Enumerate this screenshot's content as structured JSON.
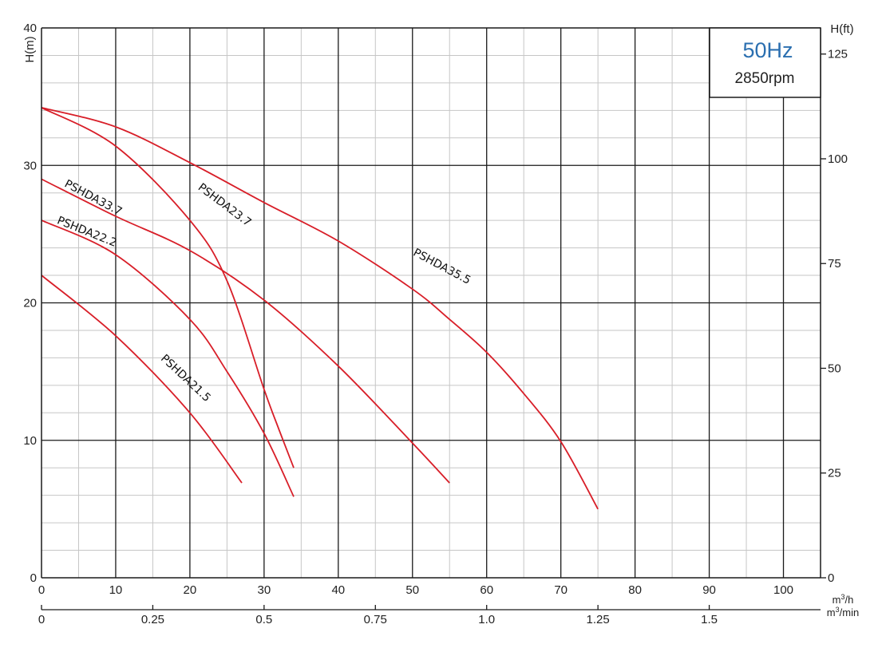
{
  "chart_data": {
    "type": "line",
    "x": {
      "min": 0,
      "max": 105,
      "ticks": [
        0,
        10,
        20,
        30,
        40,
        50,
        60,
        70,
        80,
        90,
        100
      ],
      "unit": "m³/h"
    },
    "x2": {
      "ticks": [
        0,
        0.25,
        0.5,
        0.75,
        1.0,
        1.25,
        1.5
      ],
      "tick_labels": [
        "0",
        "0.25",
        "0.5",
        "0.75",
        "1.0",
        "1.25",
        "1.5"
      ],
      "unit": "m³/min"
    },
    "y": {
      "min": 0,
      "max": 40,
      "ticks": [
        0,
        10,
        20,
        30,
        40
      ],
      "label": "H(m)"
    },
    "y2": {
      "ticks": [
        0,
        25,
        50,
        75,
        100,
        125
      ],
      "label": "H(ft)"
    },
    "grid": true,
    "info_box": {
      "title": "50Hz",
      "subtitle": "2850rpm"
    },
    "series": [
      {
        "name": "PSHDA35.5",
        "points": [
          [
            0,
            34.2
          ],
          [
            10,
            32.8
          ],
          [
            20,
            30.2
          ],
          [
            30,
            27.3
          ],
          [
            40,
            24.5
          ],
          [
            50,
            21.0
          ],
          [
            55,
            18.8
          ],
          [
            60,
            16.4
          ],
          [
            65,
            13.4
          ],
          [
            70,
            9.9
          ],
          [
            75,
            5.0
          ]
        ],
        "label_at": [
          50,
          23.5
        ],
        "label_angle": 28
      },
      {
        "name": "PSHDA23.7",
        "points": [
          [
            0,
            34.2
          ],
          [
            10,
            31.4
          ],
          [
            20,
            26.0
          ],
          [
            25,
            21.6
          ],
          [
            30,
            13.7
          ],
          [
            32,
            10.8
          ],
          [
            34,
            8.0
          ]
        ],
        "label_at": [
          21,
          28.3
        ],
        "label_angle": 37
      },
      {
        "name": "PSHDA33.7",
        "points": [
          [
            0,
            29.0
          ],
          [
            10,
            26.3
          ],
          [
            20,
            23.8
          ],
          [
            30,
            20.2
          ],
          [
            40,
            15.4
          ],
          [
            50,
            9.8
          ],
          [
            55,
            6.9
          ]
        ],
        "label_at": [
          3,
          28.5
        ],
        "label_angle": 28
      },
      {
        "name": "PSHDA22.2",
        "points": [
          [
            0,
            26.0
          ],
          [
            10,
            23.5
          ],
          [
            20,
            18.8
          ],
          [
            25,
            15.0
          ],
          [
            30,
            10.5
          ],
          [
            34,
            5.9
          ]
        ],
        "label_at": [
          2,
          25.8
        ],
        "label_angle": 22
      },
      {
        "name": "PSHDA21.5",
        "points": [
          [
            0,
            22.0
          ],
          [
            10,
            17.6
          ],
          [
            20,
            12.0
          ],
          [
            27,
            6.9
          ]
        ],
        "label_at": [
          16,
          15.9
        ],
        "label_angle": 43
      }
    ],
    "colors": {
      "curve": "#d81e28",
      "grid_major": "#1a1a1a",
      "grid_minor": "#c6c6c6",
      "box_title": "#2b6fb0"
    }
  }
}
